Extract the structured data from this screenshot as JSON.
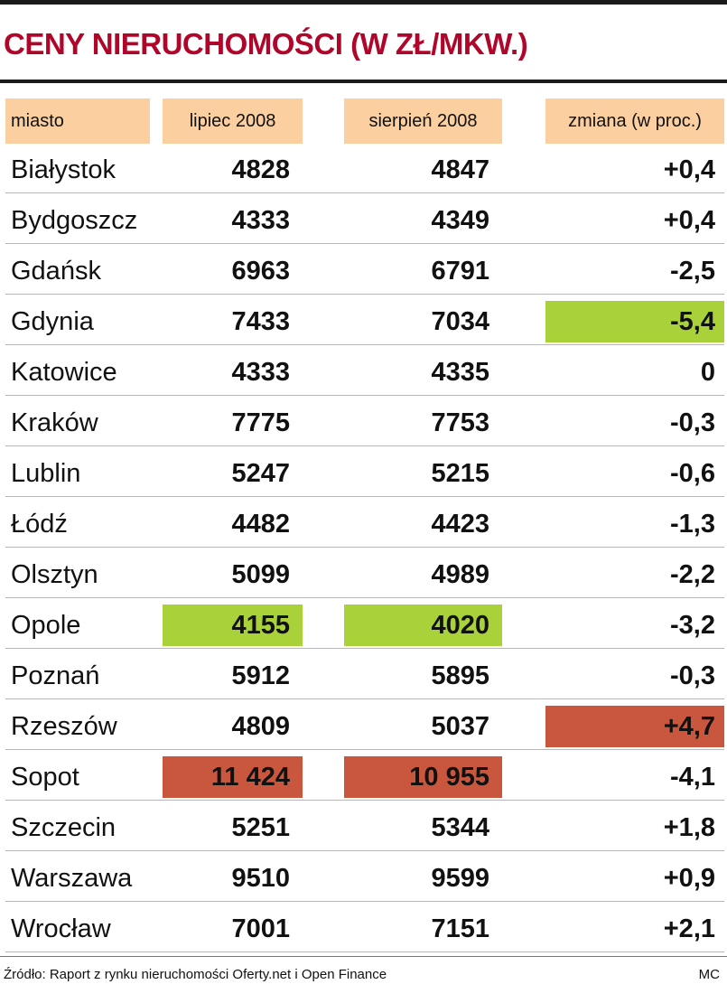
{
  "title": "CENY NIERUCHOMOŚCI (W ZŁ/MKW.)",
  "colors": {
    "title": "#b0062a",
    "header_bg": "#fbcfa0",
    "highlight_low": "#a8d13a",
    "highlight_high": "#c9573d"
  },
  "chart_data": {
    "type": "table",
    "title": "CENY NIERUCHOMOŚCI (W ZŁ/MKW.)",
    "columns": [
      "miasto",
      "lipiec 2008",
      "sierpień 2008",
      "zmiana (w proc.)"
    ],
    "rows": [
      [
        "Białystok",
        "4828",
        "4847",
        "+0,4"
      ],
      [
        "Bydgoszcz",
        "4333",
        "4349",
        "+0,4"
      ],
      [
        "Gdańsk",
        "6963",
        "6791",
        "-2,5"
      ],
      [
        "Gdynia",
        "7433",
        "7034",
        "-5,4"
      ],
      [
        "Katowice",
        "4333",
        "4335",
        "0"
      ],
      [
        "Kraków",
        "7775",
        "7753",
        "-0,3"
      ],
      [
        "Lublin",
        "5247",
        "5215",
        "-0,6"
      ],
      [
        "Łódź",
        "4482",
        "4423",
        "-1,3"
      ],
      [
        "Olsztyn",
        "5099",
        "4989",
        "-2,2"
      ],
      [
        "Opole",
        "4155",
        "4020",
        "-3,2"
      ],
      [
        "Poznań",
        "5912",
        "5895",
        "-0,3"
      ],
      [
        "Rzeszów",
        "4809",
        "5037",
        "+4,7"
      ],
      [
        "Sopot",
        "11 424",
        "10 955",
        "-4,1"
      ],
      [
        "Szczecin",
        "5251",
        "5344",
        "+1,8"
      ],
      [
        "Warszawa",
        "9510",
        "9599",
        "+0,9"
      ],
      [
        "Wrocław",
        "7001",
        "7151",
        "+2,1"
      ]
    ],
    "highlights": [
      {
        "row": 3,
        "col": 3,
        "color": "#a8d13a"
      },
      {
        "row": 9,
        "col": 1,
        "color": "#a8d13a"
      },
      {
        "row": 9,
        "col": 2,
        "color": "#a8d13a"
      },
      {
        "row": 11,
        "col": 3,
        "color": "#c9573d"
      },
      {
        "row": 12,
        "col": 1,
        "color": "#c9573d"
      },
      {
        "row": 12,
        "col": 2,
        "color": "#c9573d"
      }
    ]
  },
  "footer": {
    "source": "Źródło: Raport z rynku nieruchomości Oferty.net i Open Finance",
    "author": "MC"
  }
}
